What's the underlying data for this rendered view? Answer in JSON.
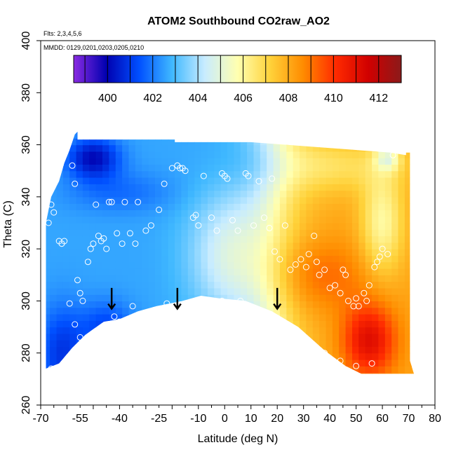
{
  "chart_data": {
    "type": "heatmap",
    "title": "ATOM2 Southbound CO2raw_AO2",
    "notes": [
      "Flts: 2,3,4,5,6",
      "MMDD: 0129,0201,0203,0205,0210"
    ],
    "xlabel": "Latitude (deg N)",
    "ylabel": "Theta (C)",
    "xlim": [
      -70,
      80
    ],
    "ylim": [
      260,
      400
    ],
    "x_ticks": [
      -70,
      -55,
      -40,
      -25,
      -10,
      0,
      10,
      20,
      30,
      40,
      50,
      60,
      70,
      80
    ],
    "y_ticks": [
      260,
      280,
      300,
      320,
      340,
      360,
      380,
      400
    ],
    "colorbar": {
      "min": 398.5,
      "max": 413,
      "ticks": [
        400,
        402,
        404,
        406,
        408,
        410,
        412
      ],
      "colors": [
        "#8a2be2",
        "#0000b0",
        "#0050ff",
        "#3fb8ff",
        "#c8ecff",
        "#ffffb0",
        "#ffd23a",
        "#ff8c00",
        "#ff2a00",
        "#d00000",
        "#8b1a1a"
      ]
    },
    "arrows_latitude": [
      -43,
      -18,
      20
    ],
    "arrow_label_theta": 302,
    "observations": [
      [
        -67,
        330
      ],
      [
        -66,
        337
      ],
      [
        -65,
        334
      ],
      [
        -63,
        323
      ],
      [
        -62,
        322
      ],
      [
        -61,
        323
      ],
      [
        -59,
        299
      ],
      [
        -57,
        291
      ],
      [
        -56,
        282
      ],
      [
        -54,
        300
      ],
      [
        -55,
        303
      ],
      [
        -56,
        308
      ],
      [
        -52,
        315
      ],
      [
        -51,
        320
      ],
      [
        -50,
        322
      ],
      [
        -49,
        337
      ],
      [
        -48,
        325
      ],
      [
        -47,
        323
      ],
      [
        -46,
        324
      ],
      [
        -45,
        320
      ],
      [
        -44,
        338
      ],
      [
        -43,
        338
      ],
      [
        -41,
        326
      ],
      [
        -39,
        322
      ],
      [
        -38,
        338
      ],
      [
        -36,
        326
      ],
      [
        -34,
        322
      ],
      [
        -33,
        338
      ],
      [
        -30,
        327
      ],
      [
        -28,
        329
      ],
      [
        -25,
        335
      ],
      [
        -23,
        345
      ],
      [
        -20,
        351
      ],
      [
        -18,
        352
      ],
      [
        -17,
        351
      ],
      [
        -16,
        351
      ],
      [
        -15,
        350
      ],
      [
        -12,
        332
      ],
      [
        -11,
        333
      ],
      [
        -10,
        329
      ],
      [
        -8,
        348
      ],
      [
        -5,
        332
      ],
      [
        -3,
        327
      ],
      [
        -1,
        349
      ],
      [
        0,
        348
      ],
      [
        1,
        347
      ],
      [
        3,
        331
      ],
      [
        5,
        327
      ],
      [
        8,
        349
      ],
      [
        9,
        348
      ],
      [
        11,
        329
      ],
      [
        13,
        346
      ],
      [
        15,
        332
      ],
      [
        17,
        328
      ],
      [
        18,
        347
      ],
      [
        19,
        319
      ],
      [
        21,
        316
      ],
      [
        23,
        329
      ],
      [
        25,
        312
      ],
      [
        27,
        314
      ],
      [
        29,
        316
      ],
      [
        31,
        313
      ],
      [
        32,
        318
      ],
      [
        34,
        325
      ],
      [
        35,
        315
      ],
      [
        36,
        310
      ],
      [
        38,
        312
      ],
      [
        40,
        305
      ],
      [
        42,
        306
      ],
      [
        44,
        303
      ],
      [
        45,
        312
      ],
      [
        46,
        310
      ],
      [
        47,
        300
      ],
      [
        49,
        298
      ],
      [
        50,
        301
      ],
      [
        51,
        298
      ],
      [
        53,
        303
      ],
      [
        54,
        300
      ],
      [
        55,
        306
      ],
      [
        57,
        313
      ],
      [
        58,
        315
      ],
      [
        59,
        317
      ],
      [
        60,
        320
      ],
      [
        62,
        318
      ],
      [
        64,
        356
      ],
      [
        -58,
        352
      ],
      [
        -57,
        345
      ],
      [
        -66,
        274
      ],
      [
        -55,
        286
      ],
      [
        -42,
        294
      ],
      [
        -40,
        292
      ],
      [
        -35,
        298
      ],
      [
        -22,
        299
      ],
      [
        -8,
        300
      ],
      [
        -1,
        300
      ],
      [
        6,
        300
      ],
      [
        14,
        296
      ],
      [
        22,
        292
      ],
      [
        26,
        289
      ],
      [
        32,
        283
      ],
      [
        38,
        280
      ],
      [
        44,
        277
      ],
      [
        50,
        275
      ],
      [
        56,
        276
      ]
    ]
  }
}
